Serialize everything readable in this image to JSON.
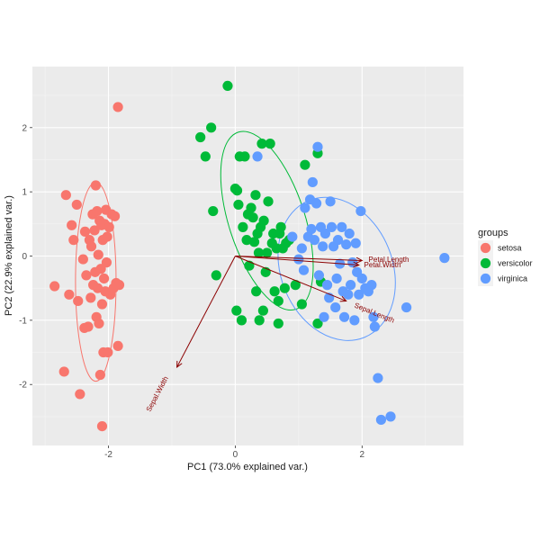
{
  "chart_data": {
    "type": "scatter",
    "title": "",
    "xlabel": "PC1 (73.0% explained var.)",
    "ylabel": "PC2 (22.9% explained var.)",
    "xlim": [
      -3.2,
      3.6
    ],
    "ylim": [
      -2.95,
      2.95
    ],
    "xticks": [
      -2,
      0,
      2
    ],
    "yticks": [
      -2,
      -1,
      0,
      1,
      2
    ],
    "grid": true,
    "legend": {
      "title": "groups",
      "position": "right",
      "entries": [
        "setosa",
        "versicolor",
        "virginica"
      ]
    },
    "series": [
      {
        "name": "setosa",
        "color": "#F8766D",
        "points": [
          [
            -2.85,
            -0.47
          ],
          [
            -2.7,
            -1.8
          ],
          [
            -2.67,
            0.95
          ],
          [
            -2.62,
            -0.6
          ],
          [
            -2.58,
            0.48
          ],
          [
            -2.55,
            0.25
          ],
          [
            -2.5,
            0.8
          ],
          [
            -2.48,
            -0.7
          ],
          [
            -2.45,
            -2.15
          ],
          [
            -2.4,
            -0.05
          ],
          [
            -2.38,
            -1.12
          ],
          [
            -2.37,
            0.38
          ],
          [
            -2.35,
            -0.3
          ],
          [
            -2.32,
            -1.1
          ],
          [
            -2.3,
            0.25
          ],
          [
            -2.28,
            -0.65
          ],
          [
            -2.27,
            0.15
          ],
          [
            -2.25,
            0.65
          ],
          [
            -2.24,
            -0.45
          ],
          [
            -2.22,
            0.4
          ],
          [
            -2.21,
            -0.25
          ],
          [
            -2.2,
            1.1
          ],
          [
            -2.19,
            -0.95
          ],
          [
            -2.18,
            0.7
          ],
          [
            -2.17,
            -0.5
          ],
          [
            -2.16,
            0.02
          ],
          [
            -2.15,
            -1.05
          ],
          [
            -2.14,
            0.55
          ],
          [
            -2.13,
            -1.85
          ],
          [
            -2.12,
            -0.2
          ],
          [
            -2.11,
            0.48
          ],
          [
            -2.1,
            -0.75
          ],
          [
            -2.09,
            0.25
          ],
          [
            -2.08,
            -1.5
          ],
          [
            -2.07,
            -0.35
          ],
          [
            -2.06,
            0.5
          ],
          [
            -2.05,
            -0.55
          ],
          [
            -2.04,
            0.72
          ],
          [
            -2.03,
            -0.1
          ],
          [
            -2.02,
            0.3
          ],
          [
            -2.01,
            -1.5
          ],
          [
            -1.99,
            0.45
          ],
          [
            -1.97,
            -0.6
          ],
          [
            -1.95,
            0.65
          ],
          [
            -1.92,
            -0.5
          ],
          [
            -1.9,
            0.62
          ],
          [
            -1.88,
            -0.42
          ],
          [
            -1.85,
            -1.4
          ],
          [
            -1.83,
            -0.45
          ],
          [
            -2.1,
            -2.65
          ],
          [
            -1.85,
            2.32
          ]
        ]
      },
      {
        "name": "versicolor",
        "color": "#00BA38",
        "points": [
          [
            -0.55,
            1.85
          ],
          [
            -0.47,
            1.55
          ],
          [
            -0.38,
            2.0
          ],
          [
            -0.35,
            0.7
          ],
          [
            -0.3,
            -0.3
          ],
          [
            0.0,
            1.05
          ],
          [
            0.02,
            -0.85
          ],
          [
            0.03,
            1.02
          ],
          [
            0.05,
            0.8
          ],
          [
            0.07,
            1.55
          ],
          [
            0.1,
            -1.0
          ],
          [
            0.12,
            0.45
          ],
          [
            0.15,
            1.55
          ],
          [
            0.18,
            0.25
          ],
          [
            0.2,
            0.65
          ],
          [
            0.22,
            -0.15
          ],
          [
            0.25,
            0.75
          ],
          [
            0.28,
            0.6
          ],
          [
            0.3,
            0.22
          ],
          [
            0.32,
            0.95
          ],
          [
            0.33,
            -0.55
          ],
          [
            0.35,
            0.35
          ],
          [
            0.37,
            0.05
          ],
          [
            0.38,
            -1.0
          ],
          [
            0.4,
            0.45
          ],
          [
            0.42,
            1.75
          ],
          [
            0.44,
            -0.85
          ],
          [
            0.45,
            0.55
          ],
          [
            0.48,
            -0.25
          ],
          [
            0.5,
            0.05
          ],
          [
            0.52,
            0.85
          ],
          [
            0.55,
            1.75
          ],
          [
            0.58,
            0.2
          ],
          [
            0.6,
            0.35
          ],
          [
            0.62,
            -0.55
          ],
          [
            0.65,
            0.12
          ],
          [
            0.68,
            -0.7
          ],
          [
            0.7,
            0.35
          ],
          [
            0.72,
            0.45
          ],
          [
            0.75,
            0.12
          ],
          [
            0.78,
            -0.5
          ],
          [
            0.8,
            0.2
          ],
          [
            0.85,
            0.25
          ],
          [
            0.95,
            -0.45
          ],
          [
            1.05,
            -0.75
          ],
          [
            1.1,
            1.42
          ],
          [
            1.3,
            -1.05
          ],
          [
            1.3,
            1.6
          ],
          [
            1.35,
            -0.4
          ],
          [
            -0.12,
            2.65
          ],
          [
            0.68,
            -1.05
          ]
        ]
      },
      {
        "name": "virginica",
        "color": "#619CFF",
        "points": [
          [
            0.35,
            1.55
          ],
          [
            0.9,
            0.3
          ],
          [
            1.0,
            -0.05
          ],
          [
            1.05,
            0.12
          ],
          [
            1.08,
            -0.22
          ],
          [
            1.1,
            0.75
          ],
          [
            1.15,
            0.3
          ],
          [
            1.18,
            0.88
          ],
          [
            1.2,
            0.42
          ],
          [
            1.22,
            1.15
          ],
          [
            1.25,
            0.25
          ],
          [
            1.28,
            0.82
          ],
          [
            1.3,
            1.7
          ],
          [
            1.32,
            -0.3
          ],
          [
            1.35,
            0.45
          ],
          [
            1.38,
            0.15
          ],
          [
            1.4,
            -0.95
          ],
          [
            1.42,
            0.35
          ],
          [
            1.45,
            -0.45
          ],
          [
            1.48,
            -0.65
          ],
          [
            1.5,
            0.85
          ],
          [
            1.52,
            0.45
          ],
          [
            1.55,
            0.15
          ],
          [
            1.58,
            -0.8
          ],
          [
            1.6,
            -0.35
          ],
          [
            1.62,
            0.25
          ],
          [
            1.65,
            -0.12
          ],
          [
            1.68,
            0.45
          ],
          [
            1.7,
            -0.55
          ],
          [
            1.72,
            -0.95
          ],
          [
            1.75,
            0.18
          ],
          [
            1.78,
            -0.6
          ],
          [
            1.8,
            0.35
          ],
          [
            1.82,
            -0.45
          ],
          [
            1.85,
            -0.1
          ],
          [
            1.88,
            -1.0
          ],
          [
            1.9,
            0.2
          ],
          [
            1.92,
            -0.25
          ],
          [
            1.95,
            -0.6
          ],
          [
            1.98,
            0.7
          ],
          [
            2.0,
            -0.35
          ],
          [
            2.05,
            -0.5
          ],
          [
            2.1,
            -0.55
          ],
          [
            2.15,
            -0.45
          ],
          [
            2.18,
            -0.95
          ],
          [
            2.2,
            -1.1
          ],
          [
            2.25,
            -1.9
          ],
          [
            2.3,
            -2.55
          ],
          [
            2.45,
            -2.5
          ],
          [
            2.7,
            -0.8
          ],
          [
            3.3,
            -0.03
          ]
        ]
      }
    ],
    "ellipses": [
      {
        "group": "setosa",
        "center": [
          -2.2,
          -0.4
        ],
        "rx": 0.32,
        "ry": 1.55,
        "rotation": 0
      },
      {
        "group": "versicolor",
        "center": [
          0.5,
          0.55
        ],
        "rx": 0.6,
        "ry": 1.45,
        "rotation": 18
      },
      {
        "group": "virginica",
        "center": [
          1.6,
          -0.2
        ],
        "rx": 0.88,
        "ry": 1.15,
        "rotation": 22
      }
    ],
    "arrows": [
      {
        "label": "Petal.Length",
        "x": 2.0,
        "y": -0.07
      },
      {
        "label": "Petal.Width",
        "x": 1.95,
        "y": -0.14
      },
      {
        "label": "Sepal.Length",
        "x": 1.75,
        "y": -0.7
      },
      {
        "label": "Sepal.Width",
        "x": -0.92,
        "y": -1.73
      }
    ],
    "arrow_color": "#8B0000"
  }
}
